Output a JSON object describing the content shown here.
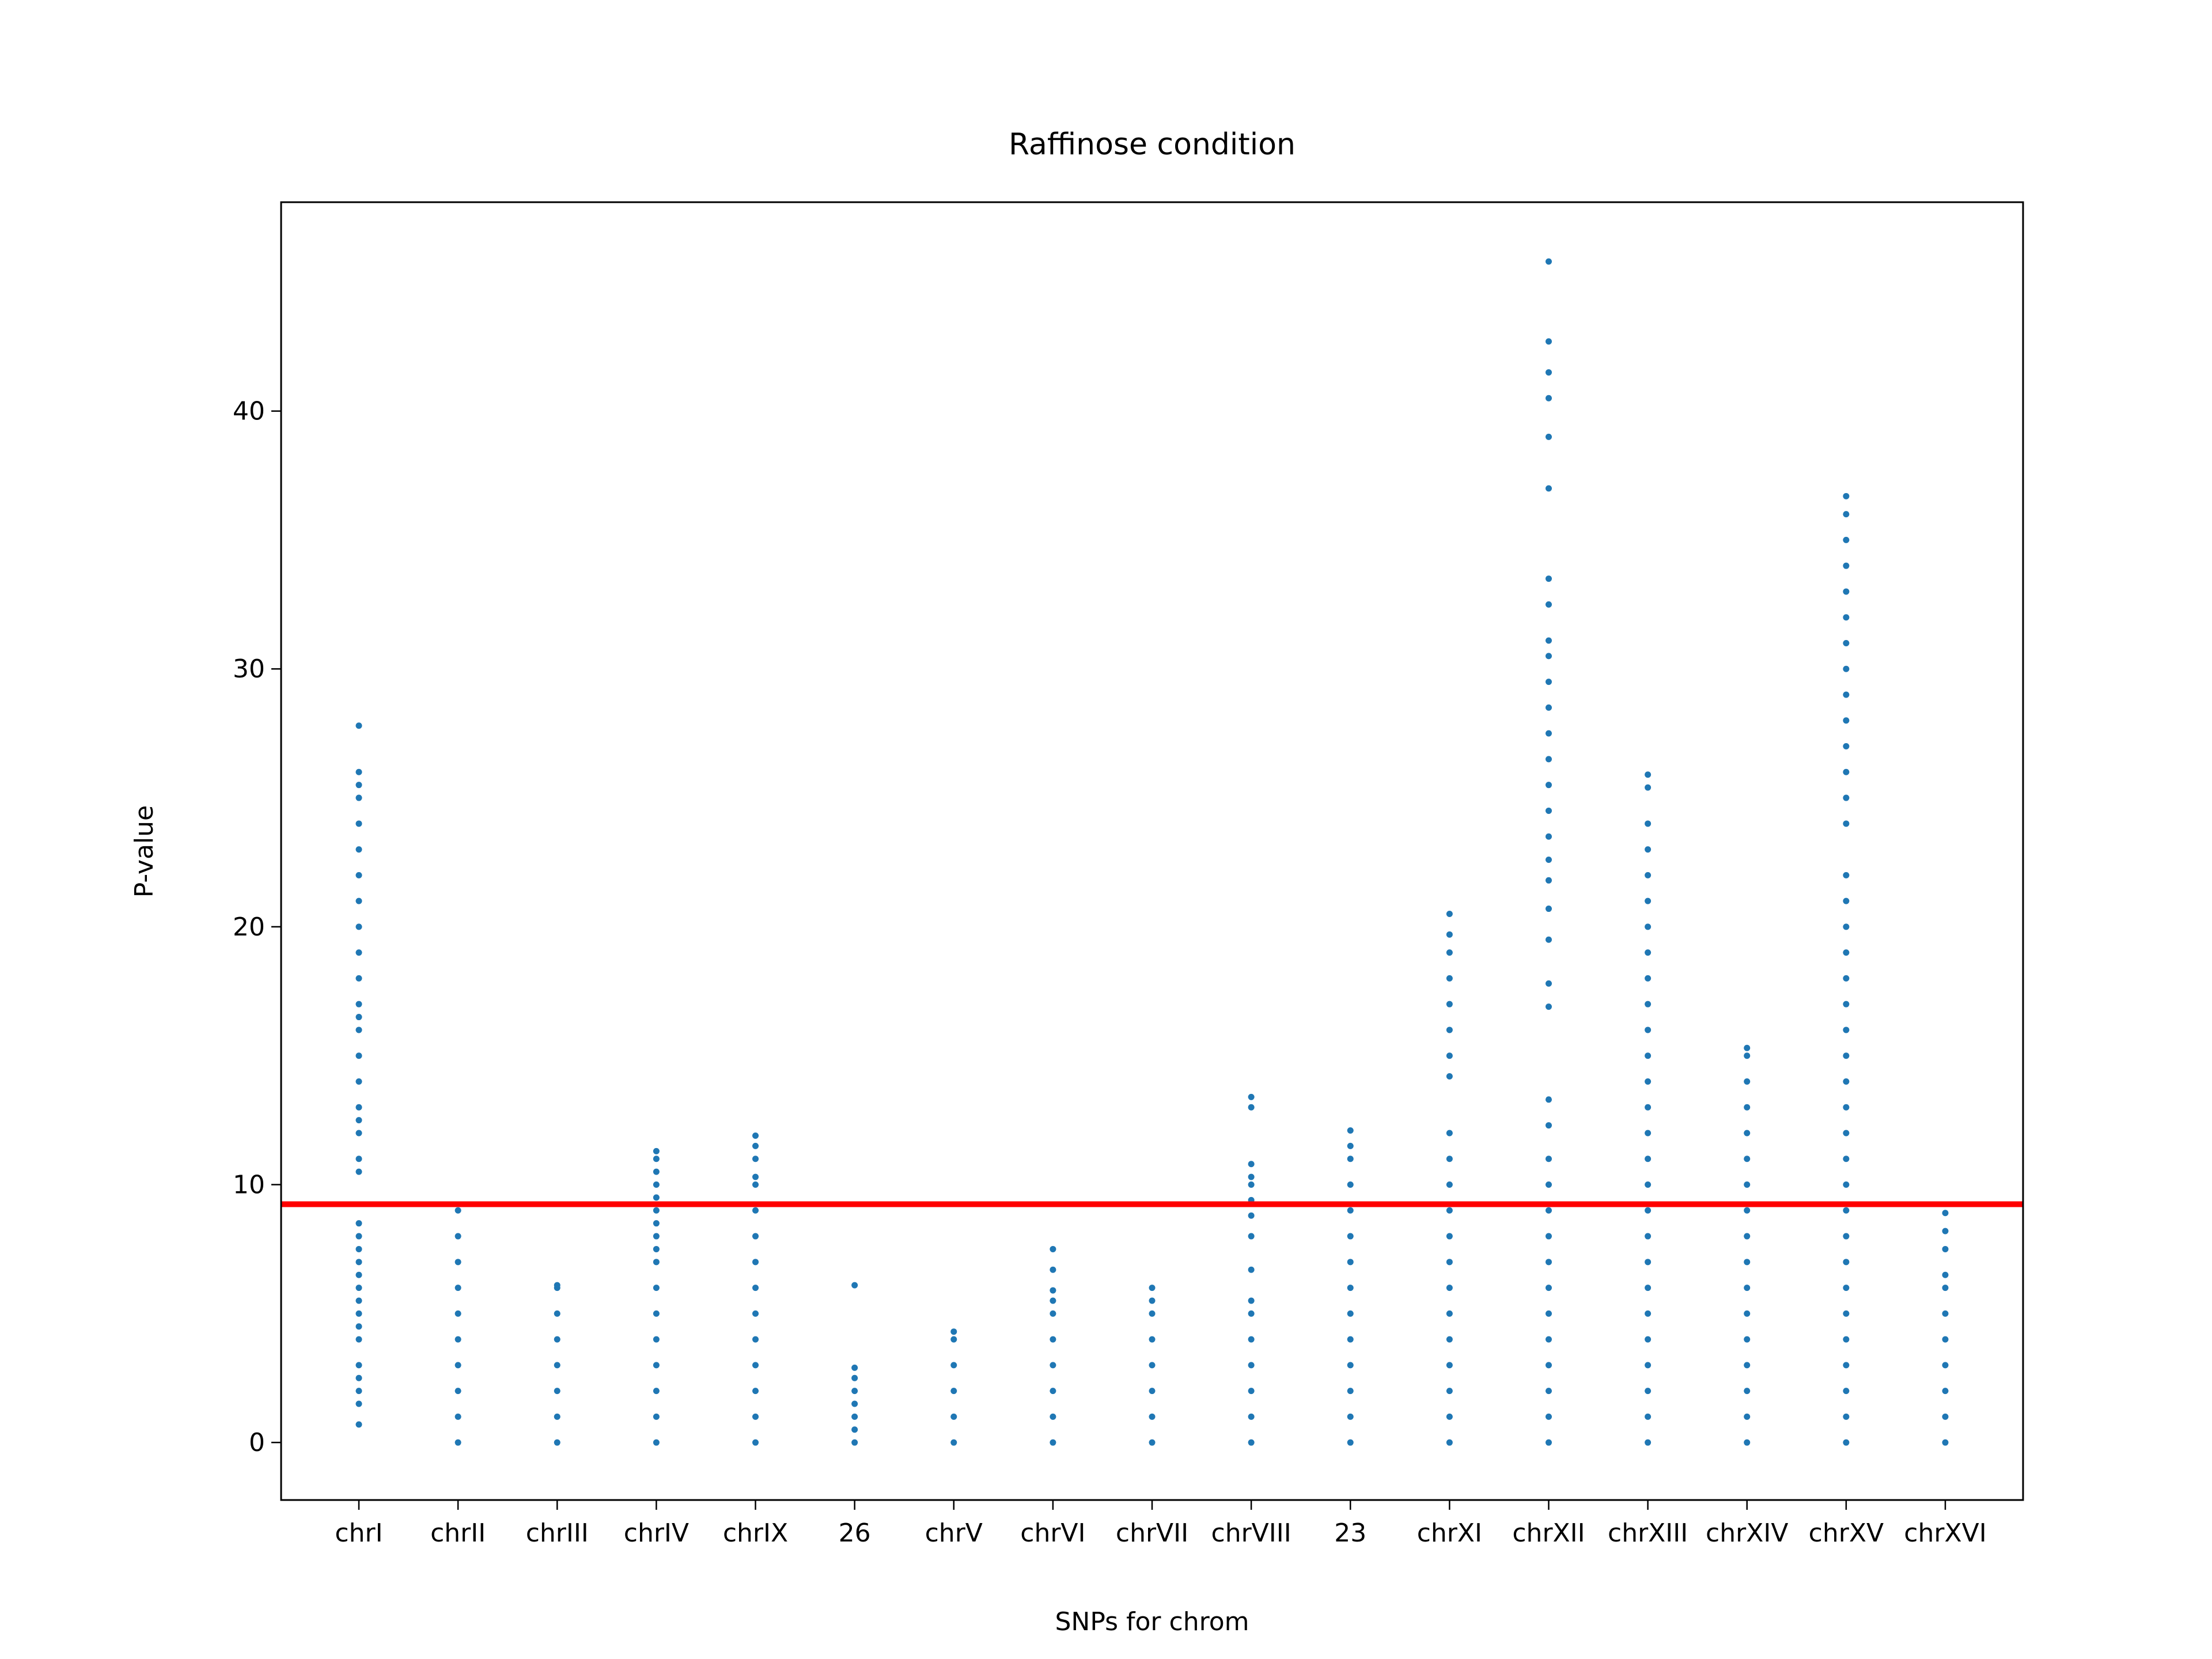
{
  "chart_data": {
    "type": "strip",
    "title": "Raffinose condition",
    "xlabel": "SNPs for chrom",
    "ylabel": "P-value",
    "color": "#1f77b4",
    "threshold": 9.24,
    "threshold_color": "#ff0000",
    "ylim": [
      -2.23,
      48.1
    ],
    "yticks": [
      0,
      10,
      20,
      30,
      40
    ],
    "categories": [
      "chrI",
      "chrII",
      "chrIII",
      "chrIV",
      "chrIX",
      "26",
      "chrV",
      "chrVI",
      "chrVII",
      "chrVIII",
      "23",
      "chrXI",
      "chrXII",
      "chrXIII",
      "chrXIV",
      "chrXV",
      "chrXVI"
    ],
    "values": [
      [
        0.7,
        1.5,
        2,
        2.5,
        3,
        4,
        4.5,
        5,
        5.5,
        6,
        6.5,
        7,
        7.5,
        8,
        8.5,
        10.5,
        11,
        12,
        12.5,
        13,
        14,
        15,
        16,
        16.5,
        17,
        18,
        19,
        20,
        21,
        22,
        23,
        24,
        25,
        25.5,
        26,
        27.8
      ],
      [
        0,
        1,
        2,
        3,
        4,
        5,
        6,
        7,
        8,
        9
      ],
      [
        0,
        1,
        2,
        3,
        4,
        5,
        6,
        6.1
      ],
      [
        0,
        1,
        2,
        3,
        4,
        5,
        6,
        7,
        7.5,
        8,
        8.5,
        9,
        9.5,
        10,
        10.5,
        11,
        11.3
      ],
      [
        0,
        1,
        2,
        3,
        4,
        5,
        6,
        7,
        8,
        9,
        10,
        10.3,
        11,
        11.5,
        11.9
      ],
      [
        0,
        0.5,
        1,
        1.5,
        2,
        2.5,
        2.9,
        6.1
      ],
      [
        0,
        1,
        2,
        3,
        4,
        4.3
      ],
      [
        0,
        1,
        2,
        3,
        4,
        5,
        5.5,
        5.9,
        6.7,
        7.5
      ],
      [
        0,
        1,
        2,
        3,
        4,
        5,
        5.5,
        6
      ],
      [
        0,
        1,
        2,
        3,
        4,
        5,
        5.5,
        6.7,
        8,
        8.8,
        9.4,
        10,
        10.3,
        10.8,
        13,
        13.4
      ],
      [
        0,
        1,
        2,
        3,
        4,
        5,
        6,
        7,
        8,
        9,
        10,
        11,
        11.5,
        12.1
      ],
      [
        0,
        1,
        2,
        3,
        4,
        5,
        6,
        7,
        8,
        9,
        10,
        11,
        12,
        14.2,
        15,
        16,
        17,
        18,
        19,
        19.7,
        20.5
      ],
      [
        0,
        1,
        2,
        3,
        4,
        5,
        6,
        7,
        8,
        9,
        10,
        11,
        12.3,
        13.3,
        16.9,
        17.8,
        19.5,
        20.7,
        21.8,
        22.6,
        23.5,
        24.5,
        25.5,
        26.5,
        27.5,
        28.5,
        29.5,
        30.5,
        31.1,
        32.5,
        33.5,
        37,
        39,
        40.5,
        41.5,
        42.7,
        45.8
      ],
      [
        0,
        1,
        2,
        3,
        4,
        5,
        6,
        7,
        8,
        9,
        10,
        11,
        12,
        13,
        14,
        15,
        16,
        17,
        18,
        19,
        20,
        21,
        22,
        23,
        24,
        25.4,
        25.9
      ],
      [
        0,
        1,
        2,
        3,
        4,
        5,
        6,
        7,
        8,
        9,
        10,
        11,
        12,
        13,
        14,
        15,
        15.3
      ],
      [
        0,
        1,
        2,
        3,
        4,
        5,
        6,
        7,
        8,
        9,
        10,
        11,
        12,
        13,
        14,
        15,
        16,
        17,
        18,
        19,
        20,
        21,
        22,
        24,
        25,
        26,
        27,
        28,
        29,
        30,
        31,
        32,
        33,
        34,
        35,
        36,
        36.7
      ],
      [
        0,
        1,
        2,
        3,
        4,
        5,
        6,
        6.5,
        7.5,
        8.2,
        8.9
      ]
    ]
  }
}
